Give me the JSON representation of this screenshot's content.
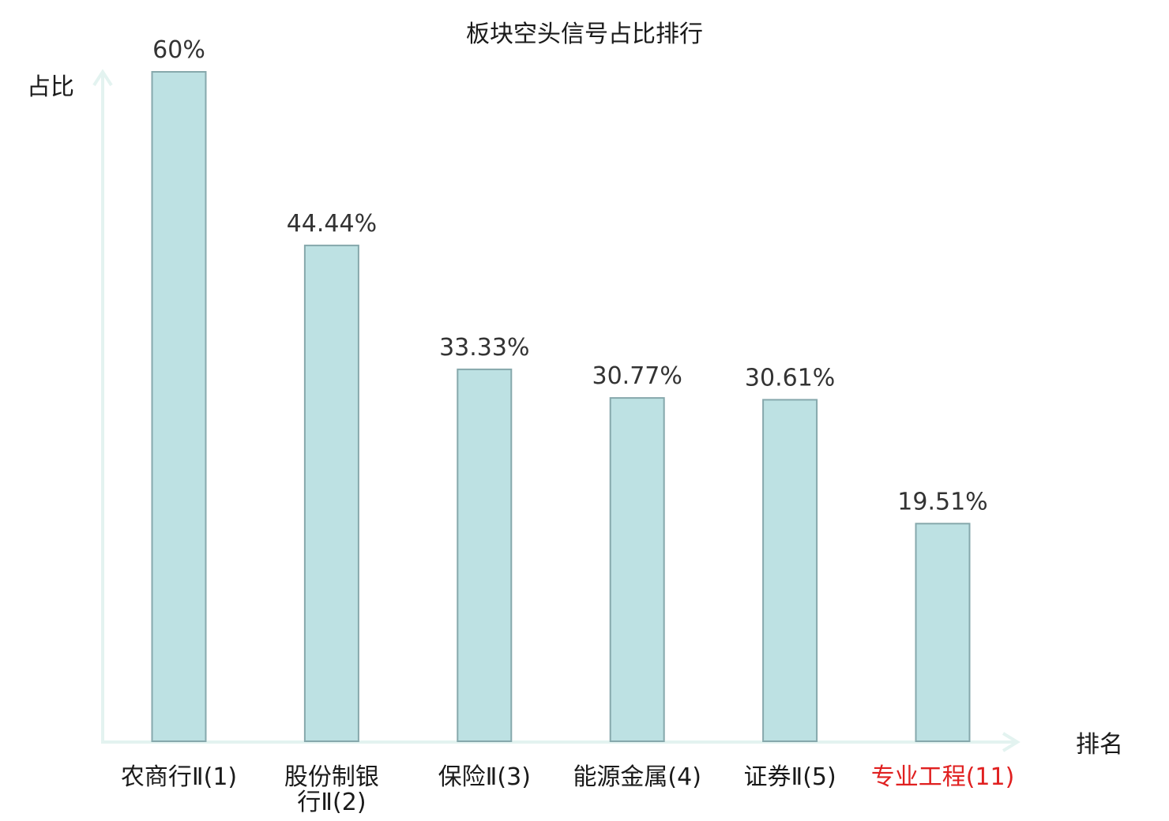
{
  "chart_data": {
    "type": "bar",
    "title": "板块空头信号占比排行",
    "ylabel": "占比",
    "xlabel": "排名",
    "ylim": [
      0,
      60
    ],
    "grid": false,
    "categories": [
      {
        "lines": [
          "农商行Ⅱ(1)"
        ],
        "highlight": false
      },
      {
        "lines": [
          "股份制银",
          "行Ⅱ(2)"
        ],
        "highlight": false
      },
      {
        "lines": [
          "保险Ⅱ(3)"
        ],
        "highlight": false
      },
      {
        "lines": [
          "能源金属(4)"
        ],
        "highlight": false
      },
      {
        "lines": [
          "证券Ⅱ(5)"
        ],
        "highlight": false
      },
      {
        "lines": [
          "专业工程(11)"
        ],
        "highlight": true
      }
    ],
    "values": [
      60,
      44.44,
      33.33,
      30.77,
      30.61,
      19.51
    ],
    "value_labels": [
      "60%",
      "44.44%",
      "33.33%",
      "30.77%",
      "30.61%",
      "19.51%"
    ]
  },
  "colors": {
    "bar_fill": "#bde1e3",
    "bar_stroke": "#86a8ac",
    "axis": "#e3f3f0",
    "label_text": "#1a1a1a",
    "highlight_text": "#e02020"
  }
}
